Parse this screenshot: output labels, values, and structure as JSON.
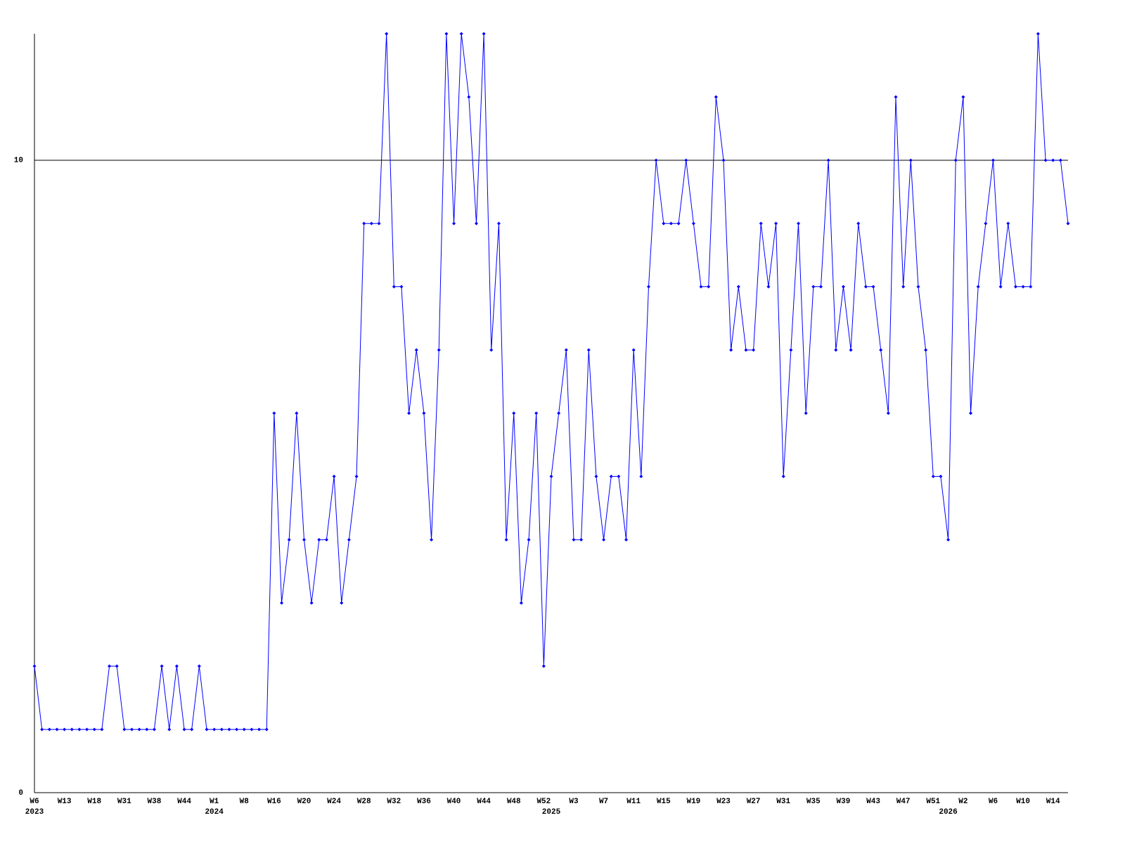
{
  "chart_data": {
    "type": "line",
    "categories": [
      "W6",
      null,
      null,
      null,
      "W13",
      null,
      null,
      null,
      "W18",
      null,
      null,
      null,
      "W31",
      null,
      null,
      null,
      "W38",
      null,
      null,
      null,
      "W44",
      null,
      null,
      null,
      "W1",
      null,
      null,
      null,
      "W8",
      null,
      null,
      null,
      "W16",
      null,
      null,
      null,
      "W20",
      null,
      null,
      null,
      "W24",
      null,
      null,
      null,
      "W28",
      null,
      null,
      null,
      "W32",
      null,
      null,
      null,
      "W36",
      null,
      null,
      null,
      "W40",
      null,
      null,
      null,
      "W44",
      null,
      null,
      null,
      "W48",
      null,
      null,
      null,
      "W52",
      null,
      null,
      null,
      "W3",
      null,
      null,
      null,
      "W7",
      null,
      null,
      null,
      "W11",
      null,
      null,
      null,
      "W15",
      null,
      null,
      null,
      "W19",
      null,
      null,
      null,
      "W23",
      null,
      null,
      null,
      "W27",
      null,
      null,
      null,
      "W31",
      null,
      null,
      null,
      "W35",
      null,
      null,
      null,
      "W39",
      null,
      null,
      null,
      "W43",
      null,
      null,
      null,
      "W47",
      null,
      null,
      null,
      "W51",
      null,
      null,
      null,
      "W2",
      null,
      null,
      null,
      "W6",
      null,
      null,
      null,
      "W10",
      null,
      null,
      null,
      "W14",
      null,
      null
    ],
    "years": [
      "2023",
      null,
      null,
      null,
      null,
      null,
      null,
      null,
      null,
      null,
      null,
      null,
      null,
      null,
      null,
      null,
      null,
      null,
      null,
      null,
      null,
      null,
      null,
      null,
      "2024",
      null,
      null,
      null,
      null,
      null,
      null,
      null,
      null,
      null,
      null,
      null,
      null,
      null,
      null,
      null,
      null,
      null,
      null,
      null,
      null,
      null,
      null,
      null,
      null,
      null,
      null,
      null,
      null,
      null,
      null,
      null,
      null,
      null,
      null,
      null,
      null,
      null,
      null,
      null,
      null,
      null,
      null,
      null,
      null,
      "2025",
      null,
      null,
      null,
      null,
      null,
      null,
      null,
      null,
      null,
      null,
      null,
      null,
      null,
      null,
      null,
      null,
      null,
      null,
      null,
      null,
      null,
      null,
      null,
      null,
      null,
      null,
      null,
      null,
      null,
      null,
      null,
      null,
      null,
      null,
      null,
      null,
      null,
      null,
      null,
      null,
      null,
      null,
      null,
      null,
      null,
      null,
      null,
      null,
      null,
      null,
      null,
      null,
      "2026",
      null,
      null,
      null,
      null,
      null,
      null,
      null,
      null,
      null,
      null,
      null,
      null,
      null,
      null,
      null,
      null
    ],
    "values": [
      2,
      1,
      1,
      1,
      1,
      1,
      1,
      1,
      1,
      1,
      2,
      2,
      1,
      1,
      1,
      1,
      1,
      2,
      1,
      2,
      1,
      1,
      2,
      1,
      1,
      1,
      1,
      1,
      1,
      1,
      1,
      1,
      6,
      3,
      4,
      6,
      4,
      3,
      4,
      4,
      5,
      3,
      4,
      5,
      9,
      9,
      9,
      12,
      8,
      8,
      6,
      7,
      6,
      4,
      7,
      12,
      9,
      12,
      11,
      9,
      12,
      7,
      9,
      4,
      6,
      3,
      4,
      6,
      2,
      5,
      6,
      7,
      4,
      4,
      7,
      5,
      4,
      5,
      5,
      4,
      7,
      5,
      8,
      10,
      9,
      9,
      9,
      10,
      9,
      8,
      8,
      11,
      10,
      7,
      8,
      7,
      7,
      9,
      8,
      9,
      5,
      7,
      9,
      6,
      8,
      8,
      10,
      7,
      8,
      7,
      9,
      8,
      8,
      7,
      6,
      11,
      8,
      10,
      8,
      7,
      5,
      5,
      4,
      10,
      11,
      6,
      8,
      9,
      10,
      8,
      9,
      8,
      8,
      8,
      12,
      10,
      10,
      10,
      9
    ],
    "color": "#0000ff",
    "ylim": [
      0,
      12
    ],
    "yticks": [
      0,
      10
    ],
    "grid": true
  }
}
